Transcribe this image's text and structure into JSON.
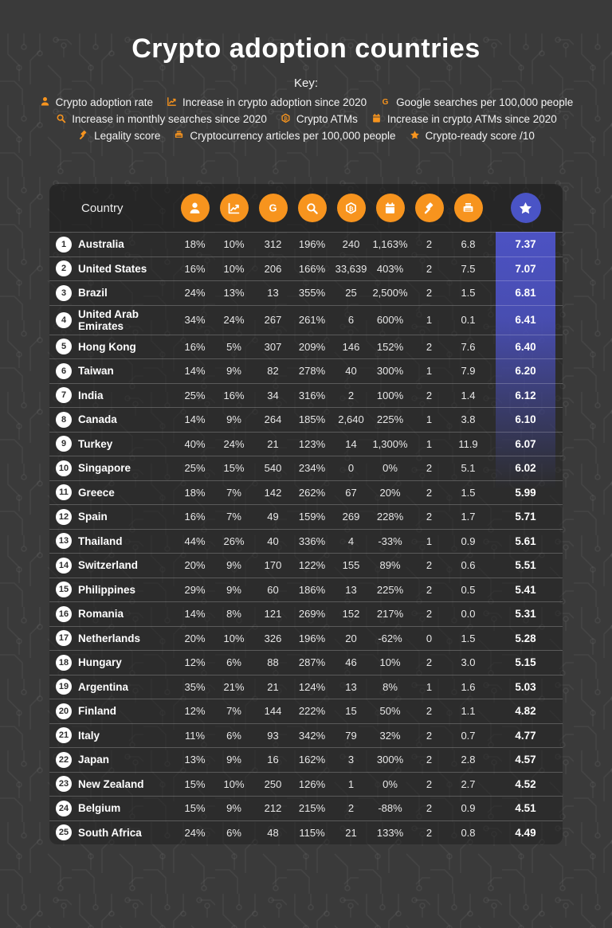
{
  "header": {
    "title": "Crypto adoption countries",
    "key_label": "Key:"
  },
  "colors": {
    "accent_orange": "#f7941e",
    "accent_blue": "#4a54c6",
    "score_gradient_top": "#4c52c3",
    "background": "#3a3a3a"
  },
  "legend": {
    "lines": [
      [
        {
          "id": "person",
          "icon": "person-icon",
          "label": "Crypto adoption rate"
        },
        {
          "id": "chart",
          "icon": "line-chart-icon",
          "label": "Increase in crypto adoption since 2020"
        },
        {
          "id": "google",
          "icon": "google-icon",
          "label": "Google searches per 100,000 people"
        }
      ],
      [
        {
          "id": "search",
          "icon": "search-icon",
          "label": "Increase in monthly searches since 2020"
        },
        {
          "id": "atm",
          "icon": "crypto-atm-icon",
          "label": "Crypto ATMs"
        },
        {
          "id": "calendar",
          "icon": "calendar-icon",
          "label": "Increase in crypto ATMs since 2020"
        }
      ],
      [
        {
          "id": "gavel",
          "icon": "gavel-icon",
          "label": "Legality score"
        },
        {
          "id": "news",
          "icon": "news-icon",
          "label": "Cryptocurrency articles per 100,000 people"
        },
        {
          "id": "star",
          "icon": "star-icon",
          "label": "Crypto-ready score /10"
        }
      ]
    ]
  },
  "table": {
    "country_header": "Country",
    "columns": [
      {
        "id": "person",
        "icon": "person-icon"
      },
      {
        "id": "chart",
        "icon": "line-chart-icon"
      },
      {
        "id": "google",
        "icon": "google-icon"
      },
      {
        "id": "search",
        "icon": "search-icon"
      },
      {
        "id": "atm",
        "icon": "crypto-atm-icon"
      },
      {
        "id": "calendar",
        "icon": "calendar-icon"
      },
      {
        "id": "gavel",
        "icon": "gavel-icon"
      },
      {
        "id": "news",
        "icon": "news-icon"
      }
    ],
    "score_column": {
      "id": "star",
      "icon": "star-icon"
    }
  },
  "chart_data": {
    "type": "table",
    "title": "Crypto adoption countries",
    "columns": [
      "Rank",
      "Country",
      "Crypto adoption rate",
      "Increase in crypto adoption since 2020",
      "Google searches per 100,000 people",
      "Increase in monthly searches since 2020",
      "Crypto ATMs",
      "Increase in crypto ATMs since 2020",
      "Legality score",
      "Cryptocurrency articles per 100,000 people",
      "Crypto-ready score /10"
    ],
    "rows": [
      {
        "rank": "1",
        "country": "Australia",
        "values": [
          "18%",
          "10%",
          "312",
          "196%",
          "240",
          "1,163%",
          "2",
          "6.8"
        ],
        "score": "7.37"
      },
      {
        "rank": "2",
        "country": "United States",
        "values": [
          "16%",
          "10%",
          "206",
          "166%",
          "33,639",
          "403%",
          "2",
          "7.5"
        ],
        "score": "7.07"
      },
      {
        "rank": "3",
        "country": "Brazil",
        "values": [
          "24%",
          "13%",
          "13",
          "355%",
          "25",
          "2,500%",
          "2",
          "1.5"
        ],
        "score": "6.81"
      },
      {
        "rank": "4",
        "country": "United Arab Emirates",
        "values": [
          "34%",
          "24%",
          "267",
          "261%",
          "6",
          "600%",
          "1",
          "0.1"
        ],
        "score": "6.41"
      },
      {
        "rank": "5",
        "country": "Hong Kong",
        "values": [
          "16%",
          "5%",
          "307",
          "209%",
          "146",
          "152%",
          "2",
          "7.6"
        ],
        "score": "6.40"
      },
      {
        "rank": "6",
        "country": "Taiwan",
        "values": [
          "14%",
          "9%",
          "82",
          "278%",
          "40",
          "300%",
          "1",
          "7.9"
        ],
        "score": "6.20"
      },
      {
        "rank": "7",
        "country": "India",
        "values": [
          "25%",
          "16%",
          "34",
          "316%",
          "2",
          "100%",
          "2",
          "1.4"
        ],
        "score": "6.12"
      },
      {
        "rank": "8",
        "country": "Canada",
        "values": [
          "14%",
          "9%",
          "264",
          "185%",
          "2,640",
          "225%",
          "1",
          "3.8"
        ],
        "score": "6.10"
      },
      {
        "rank": "9",
        "country": "Turkey",
        "values": [
          "40%",
          "24%",
          "21",
          "123%",
          "14",
          "1,300%",
          "1",
          "11.9"
        ],
        "score": "6.07"
      },
      {
        "rank": "10",
        "country": "Singapore",
        "values": [
          "25%",
          "15%",
          "540",
          "234%",
          "0",
          "0%",
          "2",
          "5.1"
        ],
        "score": "6.02"
      },
      {
        "rank": "11",
        "country": "Greece",
        "values": [
          "18%",
          "7%",
          "142",
          "262%",
          "67",
          "20%",
          "2",
          "1.5"
        ],
        "score": "5.99"
      },
      {
        "rank": "12",
        "country": "Spain",
        "values": [
          "16%",
          "7%",
          "49",
          "159%",
          "269",
          "228%",
          "2",
          "1.7"
        ],
        "score": "5.71"
      },
      {
        "rank": "13",
        "country": "Thailand",
        "values": [
          "44%",
          "26%",
          "40",
          "336%",
          "4",
          "-33%",
          "1",
          "0.9"
        ],
        "score": "5.61"
      },
      {
        "rank": "14",
        "country": "Switzerland",
        "values": [
          "20%",
          "9%",
          "170",
          "122%",
          "155",
          "89%",
          "2",
          "0.6"
        ],
        "score": "5.51"
      },
      {
        "rank": "15",
        "country": "Philippines",
        "values": [
          "29%",
          "9%",
          "60",
          "186%",
          "13",
          "225%",
          "2",
          "0.5"
        ],
        "score": "5.41"
      },
      {
        "rank": "16",
        "country": "Romania",
        "values": [
          "14%",
          "8%",
          "121",
          "269%",
          "152",
          "217%",
          "2",
          "0.0"
        ],
        "score": "5.31"
      },
      {
        "rank": "17",
        "country": "Netherlands",
        "values": [
          "20%",
          "10%",
          "326",
          "196%",
          "20",
          "-62%",
          "0",
          "1.5"
        ],
        "score": "5.28"
      },
      {
        "rank": "18",
        "country": "Hungary",
        "values": [
          "12%",
          "6%",
          "88",
          "287%",
          "46",
          "10%",
          "2",
          "3.0"
        ],
        "score": "5.15"
      },
      {
        "rank": "19",
        "country": "Argentina",
        "values": [
          "35%",
          "21%",
          "21",
          "124%",
          "13",
          "8%",
          "1",
          "1.6"
        ],
        "score": "5.03"
      },
      {
        "rank": "20",
        "country": "Finland",
        "values": [
          "12%",
          "7%",
          "144",
          "222%",
          "15",
          "50%",
          "2",
          "1.1"
        ],
        "score": "4.82"
      },
      {
        "rank": "21",
        "country": "Italy",
        "values": [
          "11%",
          "6%",
          "93",
          "342%",
          "79",
          "32%",
          "2",
          "0.7"
        ],
        "score": "4.77"
      },
      {
        "rank": "22",
        "country": "Japan",
        "values": [
          "13%",
          "9%",
          "16",
          "162%",
          "3",
          "300%",
          "2",
          "2.8"
        ],
        "score": "4.57"
      },
      {
        "rank": "23",
        "country": "New Zealand",
        "values": [
          "15%",
          "10%",
          "250",
          "126%",
          "1",
          "0%",
          "2",
          "2.7"
        ],
        "score": "4.52"
      },
      {
        "rank": "24",
        "country": "Belgium",
        "values": [
          "15%",
          "9%",
          "212",
          "215%",
          "2",
          "-88%",
          "2",
          "0.9"
        ],
        "score": "4.51"
      },
      {
        "rank": "25",
        "country": "South Africa",
        "values": [
          "24%",
          "6%",
          "48",
          "115%",
          "21",
          "133%",
          "2",
          "0.8"
        ],
        "score": "4.49"
      }
    ]
  }
}
